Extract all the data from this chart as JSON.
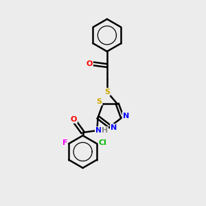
{
  "bg_color": "#ececec",
  "bond_color": "#000000",
  "atom_colors": {
    "O": "#ff0000",
    "N": "#0000ff",
    "S": "#ccaa00",
    "F": "#ff00ff",
    "Cl": "#00bb00",
    "H": "#888888",
    "C": "#000000"
  },
  "bond_width": 1.8,
  "font_size": 8
}
